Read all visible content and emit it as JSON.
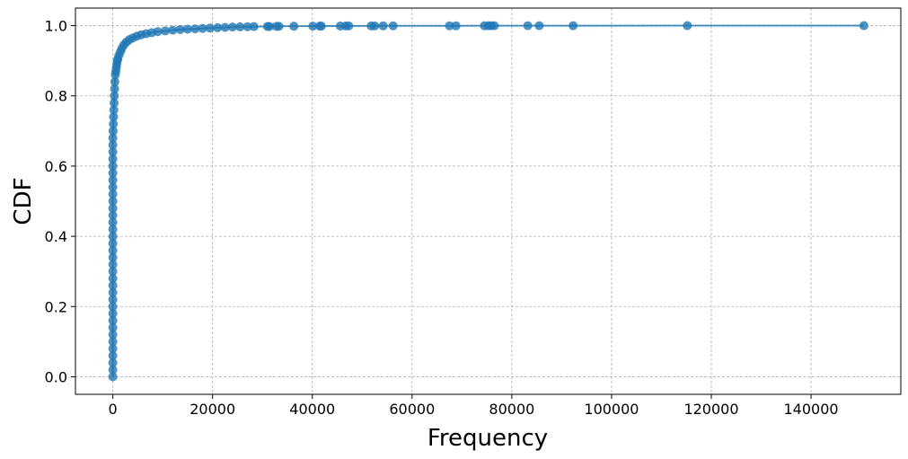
{
  "chart_data": {
    "type": "line",
    "title": "",
    "xlabel": "Frequency",
    "ylabel": "CDF",
    "xlim": [
      -7500,
      158000
    ],
    "ylim": [
      -0.05,
      1.05
    ],
    "grid": true,
    "xticks": [
      0,
      20000,
      40000,
      60000,
      80000,
      100000,
      120000,
      140000
    ],
    "xtick_labels": [
      "0",
      "20000",
      "40000",
      "60000",
      "80000",
      "100000",
      "120000",
      "140000"
    ],
    "yticks": [
      0.0,
      0.2,
      0.4,
      0.6,
      0.8,
      1.0
    ],
    "ytick_labels": [
      "0.0",
      "0.2",
      "0.4",
      "0.6",
      "0.8",
      "1.0"
    ],
    "series": [
      {
        "name": "CDF",
        "color": "#1f77b4",
        "marker": "circle",
        "x": [
          0,
          0,
          0,
          0,
          0,
          0,
          0,
          0,
          0,
          0,
          0,
          0,
          0,
          0,
          0,
          0,
          0,
          0,
          0,
          0,
          0,
          0,
          0,
          0,
          0,
          0,
          0,
          0,
          0,
          0,
          0,
          0,
          0,
          0,
          0,
          50,
          100,
          150,
          200,
          250,
          300,
          350,
          400,
          500,
          600,
          700,
          800,
          900,
          1000,
          1200,
          1500,
          1800,
          2200,
          2700,
          3300,
          4000,
          4800,
          5700,
          6700,
          7800,
          9000,
          10500,
          12000,
          13500,
          15000,
          16500,
          18000,
          19500,
          21000,
          22500,
          24000,
          25500,
          27000,
          28300,
          31000,
          31400,
          32800,
          33300,
          36300,
          40100,
          41500,
          41800,
          45600,
          46700,
          47300,
          51800,
          52500,
          54200,
          56200,
          67500,
          68800,
          74500,
          75300,
          75900,
          76500,
          83200,
          85500,
          92300,
          115200,
          150600
        ],
        "y": [
          0.0,
          0.02,
          0.04,
          0.06,
          0.08,
          0.1,
          0.12,
          0.14,
          0.16,
          0.18,
          0.2,
          0.22,
          0.24,
          0.26,
          0.28,
          0.3,
          0.32,
          0.34,
          0.36,
          0.38,
          0.4,
          0.42,
          0.44,
          0.46,
          0.48,
          0.5,
          0.52,
          0.54,
          0.56,
          0.58,
          0.6,
          0.62,
          0.64,
          0.66,
          0.68,
          0.7,
          0.72,
          0.74,
          0.76,
          0.78,
          0.8,
          0.82,
          0.84,
          0.86,
          0.87,
          0.88,
          0.89,
          0.9,
          0.905,
          0.915,
          0.925,
          0.935,
          0.945,
          0.953,
          0.96,
          0.965,
          0.97,
          0.974,
          0.977,
          0.98,
          0.983,
          0.985,
          0.987,
          0.989,
          0.99,
          0.991,
          0.992,
          0.993,
          0.994,
          0.995,
          0.996,
          0.9965,
          0.997,
          0.9972,
          0.9975,
          0.9977,
          0.998,
          0.9982,
          0.9984,
          0.9986,
          0.9987,
          0.9988,
          0.9989,
          0.999,
          0.9991,
          0.9992,
          0.9993,
          0.9994,
          0.9995,
          0.9996,
          0.9996,
          0.9997,
          0.9997,
          0.9998,
          0.9998,
          0.9999,
          0.9999,
          0.9999,
          1.0,
          1.0
        ]
      }
    ]
  }
}
